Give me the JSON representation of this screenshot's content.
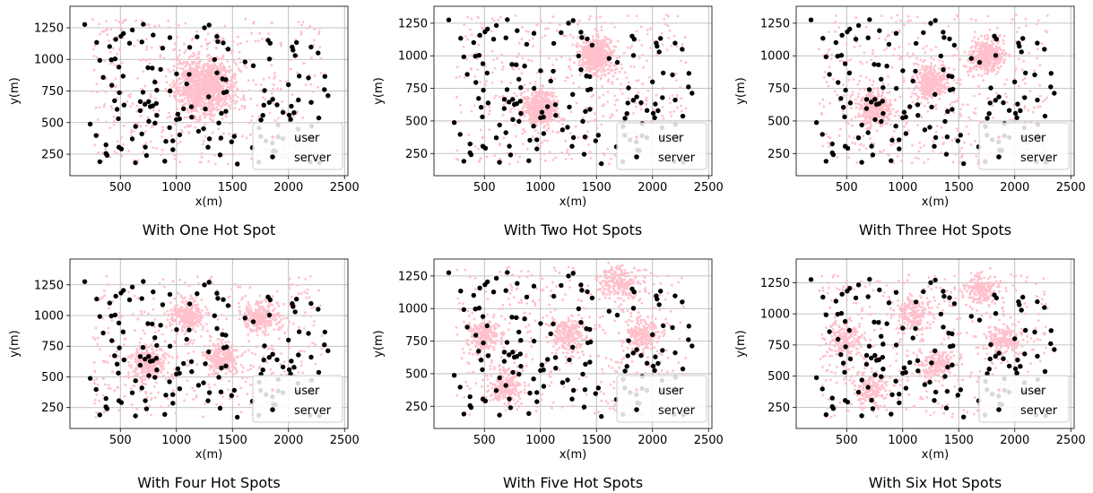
{
  "chart_data": [
    {
      "type": "scatter",
      "title": "With One Hot Spot",
      "xlabel": "x(m)",
      "ylabel": "y(m)",
      "xlim": [
        50,
        2530
      ],
      "ylim": [
        80,
        1420
      ],
      "xticks": [
        "500",
        "1000",
        "1500",
        "2000",
        "2500"
      ],
      "yticks": [
        "250",
        "500",
        "750",
        "1000",
        "1250"
      ],
      "grid": true,
      "legend_position": "lower right",
      "legend": [
        "user",
        "server"
      ],
      "hot_spots": [
        [
          1250,
          780
        ]
      ],
      "series": [
        {
          "name": "user",
          "color": "#ffc0cb",
          "marker": "small dot"
        },
        {
          "name": "server",
          "color": "#000000",
          "marker": "dot"
        }
      ]
    },
    {
      "type": "scatter",
      "title": "With Two Hot Spots",
      "xlabel": "x(m)",
      "ylabel": "y(m)",
      "xlim": [
        50,
        2530
      ],
      "ylim": [
        80,
        1380
      ],
      "xticks": [
        "500",
        "1000",
        "1500",
        "2000",
        "2500"
      ],
      "yticks": [
        "250",
        "500",
        "750",
        "1000",
        "1250"
      ],
      "grid": true,
      "legend_position": "lower right",
      "legend": [
        "user",
        "server"
      ],
      "hot_spots": [
        [
          1000,
          600
        ],
        [
          1500,
          1000
        ]
      ],
      "series": [
        {
          "name": "user",
          "color": "#ffc0cb",
          "marker": "small dot"
        },
        {
          "name": "server",
          "color": "#000000",
          "marker": "dot"
        }
      ]
    },
    {
      "type": "scatter",
      "title": "With Three Hot Spots",
      "xlabel": "x(m)",
      "ylabel": "y(m)",
      "xlim": [
        50,
        2530
      ],
      "ylim": [
        80,
        1380
      ],
      "xticks": [
        "500",
        "1000",
        "1500",
        "2000",
        "2500"
      ],
      "yticks": [
        "250",
        "500",
        "750",
        "1000",
        "1250"
      ],
      "grid": true,
      "legend_position": "lower right",
      "legend": [
        "user",
        "server"
      ],
      "hot_spots": [
        [
          750,
          600
        ],
        [
          1250,
          800
        ],
        [
          1750,
          1000
        ]
      ],
      "series": [
        {
          "name": "user",
          "color": "#ffc0cb",
          "marker": "small dot"
        },
        {
          "name": "server",
          "color": "#000000",
          "marker": "dot"
        }
      ]
    },
    {
      "type": "scatter",
      "title": "With Four Hot Spots",
      "xlabel": "x(m)",
      "ylabel": "y(m)",
      "xlim": [
        50,
        2530
      ],
      "ylim": [
        80,
        1460
      ],
      "xticks": [
        "500",
        "1000",
        "1500",
        "2000",
        "2500"
      ],
      "yticks": [
        "250",
        "500",
        "750",
        "1000",
        "1250"
      ],
      "grid": true,
      "legend_position": "lower right",
      "legend": [
        "user",
        "server"
      ],
      "hot_spots": [
        [
          750,
          600
        ],
        [
          1100,
          1000
        ],
        [
          1400,
          650
        ],
        [
          1750,
          980
        ]
      ],
      "series": [
        {
          "name": "user",
          "color": "#ffc0cb",
          "marker": "small dot"
        },
        {
          "name": "server",
          "color": "#000000",
          "marker": "dot"
        }
      ]
    },
    {
      "type": "scatter",
      "title": "With Five Hot Spots",
      "xlabel": "x(m)",
      "ylabel": "y(m)",
      "xlim": [
        50,
        2530
      ],
      "ylim": [
        80,
        1380
      ],
      "xticks": [
        "500",
        "1000",
        "1500",
        "2000",
        "2500"
      ],
      "yticks": [
        "250",
        "500",
        "750",
        "1000",
        "1250"
      ],
      "grid": true,
      "legend_position": "lower right",
      "legend": [
        "user",
        "server"
      ],
      "hot_spots": [
        [
          500,
          800
        ],
        [
          700,
          400
        ],
        [
          1250,
          800
        ],
        [
          1700,
          1200
        ],
        [
          1900,
          800
        ]
      ],
      "series": [
        {
          "name": "user",
          "color": "#ffc0cb",
          "marker": "small dot"
        },
        {
          "name": "server",
          "color": "#000000",
          "marker": "dot"
        }
      ]
    },
    {
      "type": "scatter",
      "title": "With Six Hot Spots",
      "xlabel": "x(m)",
      "ylabel": "y(m)",
      "xlim": [
        50,
        2530
      ],
      "ylim": [
        80,
        1440
      ],
      "xticks": [
        "500",
        "1000",
        "1500",
        "2000",
        "2500"
      ],
      "yticks": [
        "250",
        "500",
        "750",
        "1000",
        "1250"
      ],
      "grid": true,
      "legend_position": "lower right",
      "legend": [
        "user",
        "server"
      ],
      "hot_spots": [
        [
          500,
          800
        ],
        [
          700,
          400
        ],
        [
          1100,
          1000
        ],
        [
          1300,
          600
        ],
        [
          1700,
          1200
        ],
        [
          1900,
          800
        ]
      ],
      "series": [
        {
          "name": "user",
          "color": "#ffc0cb",
          "marker": "small dot"
        },
        {
          "name": "server",
          "color": "#000000",
          "marker": "dot"
        }
      ]
    }
  ]
}
